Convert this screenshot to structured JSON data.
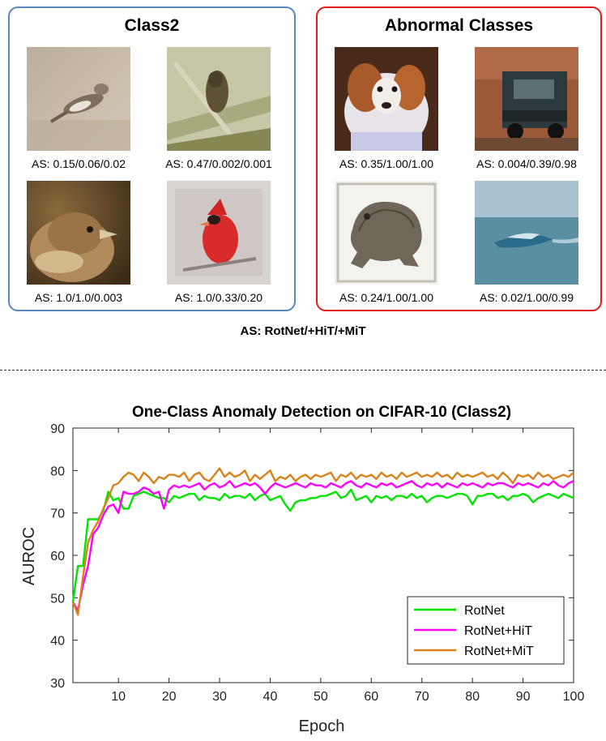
{
  "normal_panel": {
    "title": "Class2",
    "border_color": "#5a86c0",
    "images": [
      {
        "subject": "bird-on-branch",
        "caption": "AS: 0.15/0.06/0.02"
      },
      {
        "subject": "bird-in-grass",
        "caption": "AS: 0.47/0.002/0.001"
      },
      {
        "subject": "sparrow-closeup",
        "caption": "AS: 1.0/1.0/0.003"
      },
      {
        "subject": "red-cardinal",
        "caption": "AS: 1.0/0.33/0.20"
      }
    ]
  },
  "abnormal_panel": {
    "title": "Abnormal Classes",
    "border_color": "#e01b1b",
    "images": [
      {
        "subject": "dog",
        "caption": "AS: 0.35/1.00/1.00"
      },
      {
        "subject": "truck",
        "caption": "AS: 0.004/0.39/0.98"
      },
      {
        "subject": "frog",
        "caption": "AS: 0.24/1.00/1.00"
      },
      {
        "subject": "ship",
        "caption": "AS: 0.02/1.00/0.99"
      }
    ]
  },
  "as_legend": "AS: RotNet/+HiT/+MiT",
  "chart_data": {
    "type": "line",
    "title": "One-Class Anomaly Detection on CIFAR-10 (Class2)",
    "xlabel": "Epoch",
    "ylabel": "AUROC",
    "xlim": [
      1,
      100
    ],
    "ylim": [
      30,
      90
    ],
    "xticks": [
      10,
      20,
      30,
      40,
      50,
      60,
      70,
      80,
      90,
      100
    ],
    "yticks": [
      30,
      40,
      50,
      60,
      70,
      80,
      90
    ],
    "grid": false,
    "legend_position": "bottom-right",
    "x_start": 1,
    "series": [
      {
        "name": "RotNet",
        "color": "#00e400",
        "values": [
          49,
          57.5,
          57.5,
          68.5,
          68.5,
          68.5,
          70.5,
          75,
          73,
          73.5,
          71,
          71,
          74,
          74.5,
          75,
          74.5,
          74,
          73.5,
          73.5,
          72.5,
          74,
          73.5,
          74,
          74.5,
          74.5,
          73,
          74,
          73.5,
          73.5,
          73,
          74.5,
          73.5,
          74,
          74,
          73.5,
          74.5,
          73,
          74,
          74.5,
          73,
          73.5,
          74,
          72,
          70.5,
          72.5,
          73,
          73,
          73.5,
          73.5,
          74,
          74,
          74.5,
          75,
          73.5,
          74,
          75.5,
          73,
          73.5,
          74,
          72.5,
          74,
          73.5,
          74,
          73,
          74,
          74,
          73.5,
          74.5,
          73.5,
          74,
          72.5,
          73.5,
          74,
          74,
          73.5,
          74,
          74.5,
          74.5,
          74,
          72,
          74,
          74,
          74.5,
          74.5,
          73.5,
          74,
          73,
          74,
          74,
          74.5,
          74,
          72.5,
          73.5,
          74,
          74.5,
          74,
          73.5,
          74.5,
          74,
          73.5
        ]
      },
      {
        "name": "RotNet+HiT",
        "color": "#ff00ff",
        "values": [
          49,
          47,
          53,
          57.5,
          65,
          66.5,
          69.5,
          71.5,
          72,
          70,
          75,
          74.5,
          74.5,
          75,
          76,
          75.5,
          74.5,
          75,
          71,
          75.5,
          76.5,
          76,
          76.5,
          76,
          76.5,
          77,
          75.5,
          76.5,
          77,
          76,
          76.5,
          77.5,
          76,
          76.5,
          77,
          76.5,
          77,
          76,
          74.5,
          76,
          77,
          76.5,
          76,
          76.5,
          77,
          76.5,
          76,
          77,
          76.5,
          76.5,
          76,
          77,
          76.5,
          76,
          77,
          77.5,
          76.5,
          76,
          77,
          76.5,
          76,
          77,
          76.5,
          77,
          76,
          76.5,
          77,
          77.5,
          76.5,
          76,
          77,
          76.5,
          77,
          76,
          77,
          76.5,
          76,
          77,
          76.5,
          77,
          76.5,
          76,
          77,
          76.5,
          77,
          77,
          76.5,
          76,
          77,
          76.5,
          77,
          76.5,
          76,
          77,
          76.5,
          77.5,
          76.5,
          76,
          77,
          77.5
        ]
      },
      {
        "name": "RotNet+MiT",
        "color": "#d9821b",
        "values": [
          49,
          46,
          55,
          63,
          66,
          68,
          71,
          73.5,
          76.5,
          77,
          78.5,
          79.5,
          79,
          77.5,
          79.5,
          78.5,
          77,
          78.5,
          78,
          79,
          79,
          78.5,
          79.5,
          77.5,
          79,
          79.5,
          78,
          77.5,
          79,
          80.5,
          78.5,
          79.5,
          78.5,
          79,
          80,
          77.5,
          79,
          78,
          79,
          80,
          77.5,
          78.5,
          78,
          79,
          77.5,
          78.5,
          79,
          78,
          79,
          78.5,
          79,
          79.5,
          77.5,
          79,
          78.5,
          79.5,
          78,
          79,
          78.5,
          79,
          78,
          79.5,
          78.5,
          79,
          78,
          79.5,
          78.5,
          79,
          79.5,
          78.5,
          79,
          78.5,
          79.5,
          78.5,
          79,
          78,
          79.5,
          78.5,
          79,
          78.5,
          79,
          79.5,
          78.5,
          79,
          78,
          79.5,
          78.5,
          77,
          79,
          78.5,
          79,
          78,
          79.5,
          78.5,
          79,
          78,
          78.5,
          79,
          78.5,
          79.5
        ]
      }
    ]
  }
}
